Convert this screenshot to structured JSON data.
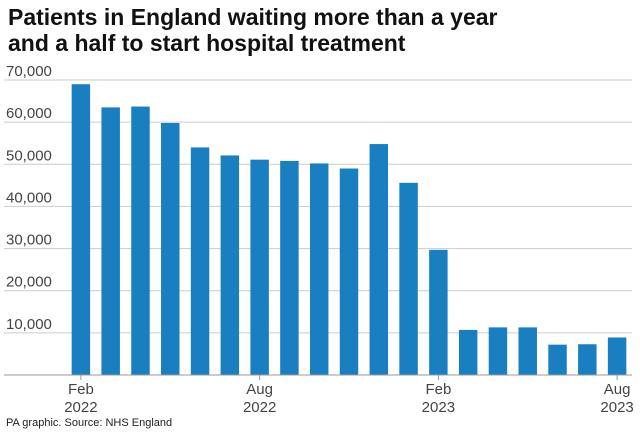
{
  "title_lines": [
    "Patients in England waiting more than a year",
    "and a half to start hospital treatment"
  ],
  "source": "PA graphic. Source: NHS England",
  "colors": {
    "bar": "#1a7fc1",
    "grid": "#cccccc",
    "text": "#444444"
  },
  "chart_data": {
    "type": "bar",
    "categories": [
      "Feb 2022",
      "Mar 2022",
      "Apr 2022",
      "May 2022",
      "Jun 2022",
      "Jul 2022",
      "Aug 2022",
      "Sep 2022",
      "Oct 2022",
      "Nov 2022",
      "Dec 2022",
      "Jan 2023",
      "Feb 2023",
      "Mar 2023",
      "Apr 2023",
      "May 2023",
      "Jun 2023",
      "Jul 2023",
      "Aug 2023"
    ],
    "values": [
      69000,
      63500,
      63700,
      59800,
      54000,
      52100,
      51100,
      50800,
      50200,
      49000,
      54800,
      45600,
      29700,
      10700,
      11300,
      11300,
      7200,
      7300,
      8900
    ],
    "tick_labels": [
      {
        "index": 0,
        "line1": "Feb",
        "line2": "2022"
      },
      {
        "index": 6,
        "line1": "Aug",
        "line2": "2022"
      },
      {
        "index": 12,
        "line1": "Feb",
        "line2": "2023"
      },
      {
        "index": 18,
        "line1": "Aug",
        "line2": "2023"
      }
    ],
    "y_ticks": [
      "10,000",
      "20,000",
      "30,000",
      "40,000",
      "50,000",
      "60,000",
      "70,000"
    ],
    "ylim": [
      0,
      70000
    ],
    "grid": true,
    "legend": "none"
  }
}
